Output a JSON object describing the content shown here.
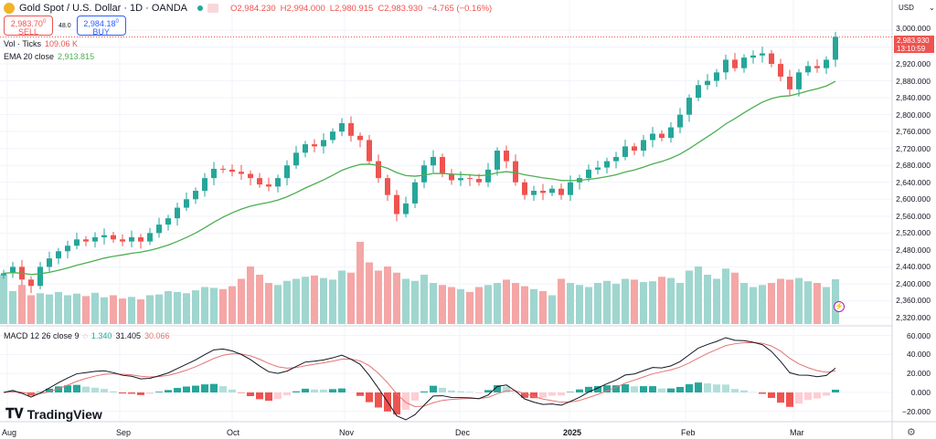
{
  "header": {
    "title": "Gold Spot / U.S. Dollar · 1D · OANDA",
    "open": "O2,984.230",
    "high": "H2,994.000",
    "low": "L2,980.915",
    "close": "C2,983.930",
    "change": "−4.765 (−0.16%)"
  },
  "trade": {
    "sell_price": "2,983.70",
    "sell_sup": "0",
    "sell_label": "SELL",
    "spread": "48.0",
    "buy_price": "2,984.18",
    "buy_sup": "0",
    "buy_label": "BUY"
  },
  "indicators": {
    "vol_label": "Vol · Ticks",
    "vol_value": "109.06 K",
    "ema_label": "EMA 20 close",
    "ema_value": "2,913.815",
    "macd_label": "MACD 12 26 close 9",
    "macd_hist": "1.340",
    "macd_value": "31.405",
    "macd_signal": "30.066"
  },
  "axis": {
    "currency": "USD",
    "last_price": "2,983.930",
    "countdown": "13:10:59",
    "price_ticks": [
      "3,000.000",
      "2,960.000",
      "2,920.000",
      "2,880.000",
      "2,840.000",
      "2,800.000",
      "2,760.000",
      "2,720.000",
      "2,680.000",
      "2,640.000",
      "2,600.000",
      "2,560.000",
      "2,520.000",
      "2,480.000",
      "2,440.000",
      "2,400.000",
      "2,360.000",
      "2,320.000"
    ],
    "macd_ticks": [
      "60.000",
      "40.000",
      "20.000",
      "0.000",
      "−20.000"
    ],
    "dates": [
      "Aug",
      "Sep",
      "Oct",
      "Nov",
      "Dec",
      "2025",
      "Feb",
      "Mar"
    ]
  },
  "brand": "TradingView",
  "colors": {
    "up": "#26a69a",
    "down": "#ef5350",
    "ema": "#4caf50",
    "macd": "#131722",
    "signal": "#e57373"
  },
  "chart_data": {
    "type": "candlestick",
    "ylim": [
      2320,
      3000
    ],
    "closes": [
      2425,
      2440,
      2410,
      2395,
      2440,
      2460,
      2477,
      2490,
      2505,
      2500,
      2510,
      2515,
      2505,
      2500,
      2510,
      2500,
      2520,
      2540,
      2555,
      2580,
      2600,
      2620,
      2650,
      2672,
      2670,
      2665,
      2660,
      2650,
      2635,
      2630,
      2650,
      2680,
      2710,
      2730,
      2725,
      2740,
      2760,
      2780,
      2750,
      2740,
      2690,
      2650,
      2610,
      2565,
      2590,
      2640,
      2680,
      2700,
      2660,
      2645,
      2650,
      2648,
      2640,
      2670,
      2715,
      2690,
      2640,
      2610,
      2620,
      2615,
      2625,
      2610,
      2640,
      2650,
      2670,
      2675,
      2690,
      2700,
      2725,
      2715,
      2740,
      2755,
      2745,
      2770,
      2800,
      2840,
      2870,
      2880,
      2900,
      2930,
      2910,
      2935,
      2940,
      2945,
      2920,
      2890,
      2860,
      2900,
      2915,
      2910,
      2930,
      2984
    ],
    "volumes_k": [
      120,
      80,
      95,
      70,
      75,
      72,
      78,
      70,
      74,
      68,
      76,
      65,
      70,
      62,
      66,
      60,
      70,
      72,
      80,
      78,
      75,
      82,
      90,
      88,
      85,
      92,
      110,
      140,
      120,
      100,
      95,
      105,
      110,
      115,
      118,
      112,
      108,
      130,
      125,
      200,
      150,
      130,
      140,
      125,
      110,
      105,
      120,
      100,
      95,
      90,
      85,
      78,
      90,
      95,
      100,
      108,
      100,
      92,
      85,
      80,
      70,
      110,
      100,
      95,
      90,
      100,
      105,
      98,
      110,
      108,
      102,
      104,
      115,
      112,
      100,
      130,
      140,
      120,
      110,
      135,
      125,
      100,
      90,
      95,
      100,
      110,
      108,
      112,
      104,
      100,
      90,
      109
    ]
  }
}
